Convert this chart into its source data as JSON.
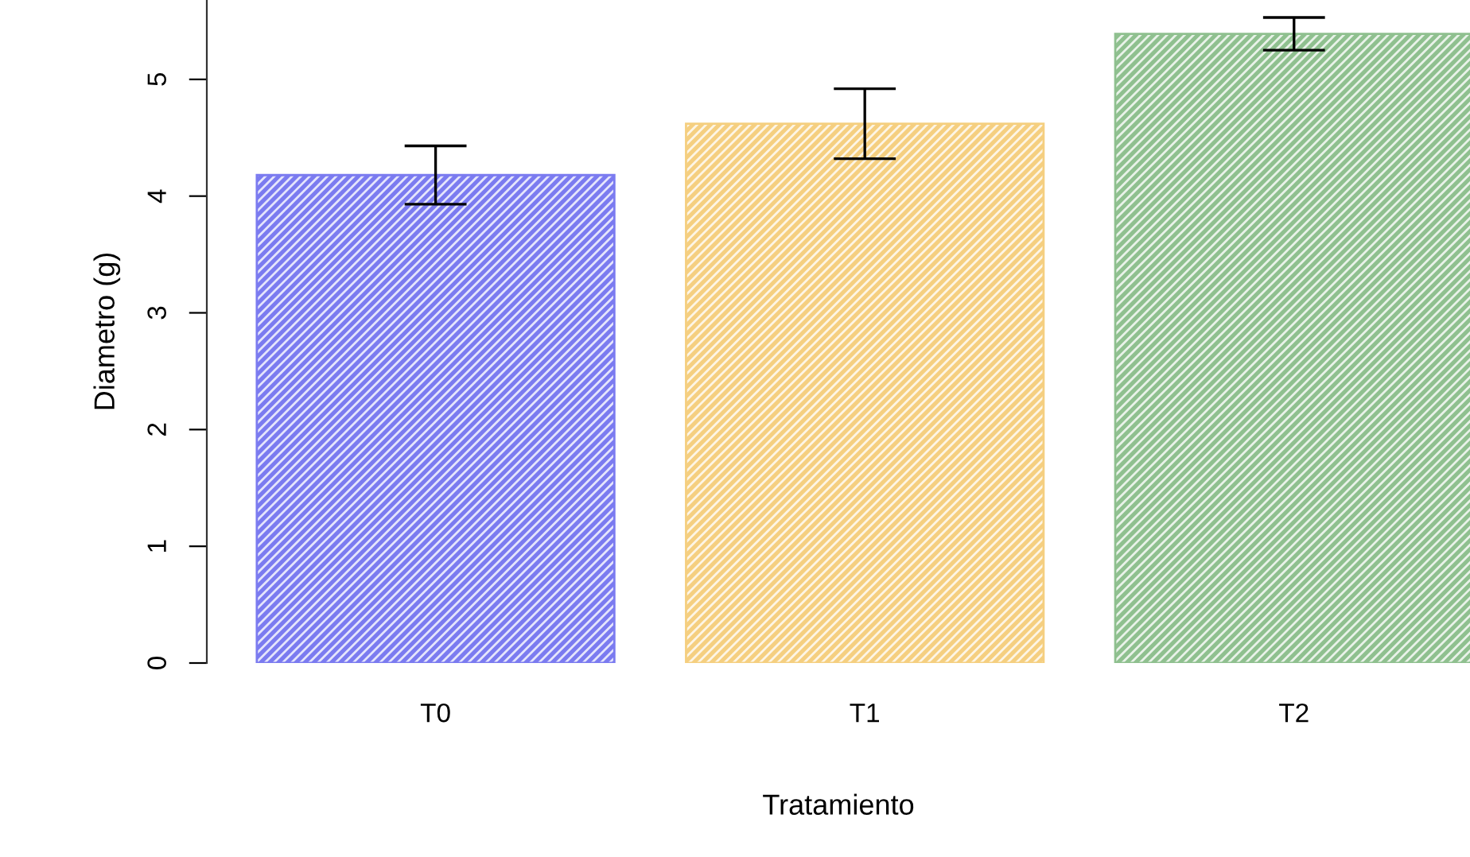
{
  "chart_data": {
    "type": "bar",
    "xlabel": "Tratamiento",
    "ylabel": "Diametro (g)",
    "categories": [
      "T0",
      "T1",
      "T2"
    ],
    "values": [
      4.18,
      4.62,
      5.39
    ],
    "errors": [
      0.25,
      0.3,
      0.14
    ],
    "colors": [
      "#7b7bf0",
      "#f5cf80",
      "#8fc08f"
    ],
    "ylim": [
      0,
      5.68
    ],
    "yticks": [
      0,
      1,
      2,
      3,
      4,
      5
    ],
    "grid": false,
    "legend": false
  }
}
